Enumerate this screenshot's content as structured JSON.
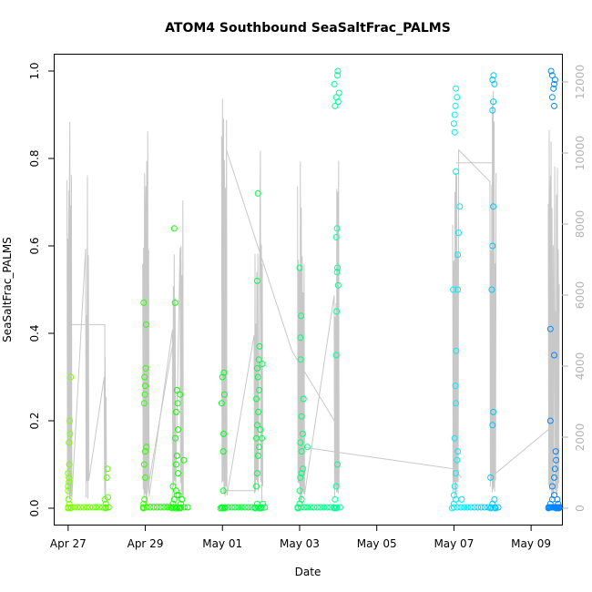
{
  "chart_data": {
    "type": "scatter",
    "title": "ATOM4 Southbound SeaSaltFrac_PALMS",
    "xlabel": "Date",
    "ylabel": "SeaSaltFrac_PALMS",
    "ylim": [
      0,
      1
    ],
    "y_ticks": [
      "0.0",
      "0.2",
      "0.4",
      "0.6",
      "0.8",
      "1.0"
    ],
    "x_range_days": [
      -0.35,
      12.8
    ],
    "x_ticks": [
      {
        "day": 0,
        "label": "Apr 27"
      },
      {
        "day": 2,
        "label": "Apr 29"
      },
      {
        "day": 4,
        "label": "May 01"
      },
      {
        "day": 6,
        "label": "May 03"
      },
      {
        "day": 8,
        "label": "May 05"
      },
      {
        "day": 10,
        "label": "May 07"
      },
      {
        "day": 12,
        "label": "May 09"
      }
    ],
    "right_axis": {
      "range": [
        0,
        12500
      ],
      "ticks": [
        "0",
        "2000",
        "4000",
        "6000",
        "8000",
        "10000",
        "12000"
      ],
      "color": "#b3b3b3"
    },
    "altitude_color": "#c8c8c8",
    "colors": {
      "start": "#7fff00",
      "end": "#0080ff"
    },
    "legend": "none",
    "series": [
      {
        "name": "SeaSaltFrac_PALMS",
        "note": "points colored by time along the flight track"
      }
    ],
    "flights": [
      {
        "name": "flight-1",
        "start": 0.0,
        "end": 1.05,
        "alt_peaks": [
          11500,
          11000,
          9500,
          5000
        ],
        "alt_peak_days": [
          0.02,
          0.06,
          0.5,
          0.97
        ],
        "points": [
          [
            0.0,
            0.0
          ],
          [
            0.01,
            0.02
          ],
          [
            0.0,
            0.04
          ],
          [
            0.02,
            0.07
          ],
          [
            0.0,
            0.08
          ],
          [
            0.03,
            0.1
          ],
          [
            0.02,
            0.15
          ],
          [
            0.05,
            0.17
          ],
          [
            0.04,
            0.2
          ],
          [
            0.07,
            0.3
          ],
          [
            0.0,
            0.05
          ],
          [
            0.03,
            0.01
          ],
          [
            0.05,
            0.0
          ],
          [
            0.02,
            0.06
          ],
          [
            0.95,
            0.02
          ],
          [
            1.0,
            0.07
          ],
          [
            1.02,
            0.09
          ],
          [
            0.98,
            0.01
          ],
          [
            1.03,
            0.025
          ],
          [
            0.97,
            0.0
          ]
        ]
      },
      {
        "name": "flight-2",
        "start": 1.95,
        "end": 3.1,
        "alt_peaks": [
          10500,
          11900,
          8500,
          9800
        ],
        "alt_peak_days": [
          1.98,
          2.05,
          2.75,
          2.95
        ],
        "points": [
          [
            1.95,
            0.0
          ],
          [
            1.96,
            0.01
          ],
          [
            1.98,
            0.02
          ],
          [
            1.97,
            0.1
          ],
          [
            2.0,
            0.13
          ],
          [
            1.99,
            0.26
          ],
          [
            2.0,
            0.28
          ],
          [
            1.98,
            0.3
          ],
          [
            2.01,
            0.32
          ],
          [
            1.97,
            0.24
          ],
          [
            2.02,
            0.42
          ],
          [
            1.96,
            0.47
          ],
          [
            2.03,
            0.14
          ],
          [
            2.0,
            0.07
          ],
          [
            2.7,
            0.0
          ],
          [
            2.72,
            0.01
          ],
          [
            2.75,
            0.02
          ],
          [
            2.8,
            0.04
          ],
          [
            2.72,
            0.05
          ],
          [
            2.85,
            0.08
          ],
          [
            2.8,
            0.1
          ],
          [
            2.82,
            0.12
          ],
          [
            2.78,
            0.16
          ],
          [
            2.85,
            0.18
          ],
          [
            2.8,
            0.22
          ],
          [
            2.84,
            0.24
          ],
          [
            2.82,
            0.27
          ],
          [
            2.9,
            0.26
          ],
          [
            2.75,
            0.64
          ],
          [
            2.77,
            0.47
          ],
          [
            2.82,
            0.03
          ],
          [
            2.88,
            0.0
          ],
          [
            2.92,
            0.01
          ],
          [
            2.95,
            0.02
          ],
          [
            3.0,
            0.11
          ],
          [
            2.9,
            0.0
          ],
          [
            2.8,
            0.0
          ],
          [
            2.86,
            0.03
          ]
        ]
      },
      {
        "name": "flight-3",
        "start": 3.98,
        "end": 5.1,
        "alt_peaks": [
          11700,
          12400,
          8800,
          11100
        ],
        "alt_peak_days": [
          4.02,
          4.08,
          4.88,
          5.02
        ],
        "points": [
          [
            3.95,
            0.0
          ],
          [
            4.0,
            0.0
          ],
          [
            4.05,
            0.0
          ],
          [
            4.02,
            0.13
          ],
          [
            4.03,
            0.17
          ],
          [
            3.98,
            0.24
          ],
          [
            4.05,
            0.26
          ],
          [
            4.0,
            0.3
          ],
          [
            4.04,
            0.31
          ],
          [
            4.02,
            0.04
          ],
          [
            4.85,
            0.0
          ],
          [
            4.9,
            0.01
          ],
          [
            4.88,
            0.05
          ],
          [
            4.9,
            0.08
          ],
          [
            4.92,
            0.12
          ],
          [
            4.95,
            0.14
          ],
          [
            4.88,
            0.16
          ],
          [
            4.9,
            0.19
          ],
          [
            4.93,
            0.22
          ],
          [
            4.88,
            0.25
          ],
          [
            4.95,
            0.27
          ],
          [
            4.92,
            0.3
          ],
          [
            4.9,
            0.32
          ],
          [
            4.94,
            0.34
          ],
          [
            4.96,
            0.37
          ],
          [
            4.9,
            0.52
          ],
          [
            4.92,
            0.72
          ],
          [
            5.0,
            0.0
          ],
          [
            5.05,
            0.01
          ],
          [
            4.98,
            0.18
          ],
          [
            5.02,
            0.16
          ],
          [
            5.03,
            0.33
          ],
          [
            4.96,
            0.0
          ]
        ]
      },
      {
        "name": "flight-4",
        "start": 5.95,
        "end": 7.05,
        "alt_peaks": [
          10700,
          10500,
          9800,
          10100
        ],
        "alt_peak_days": [
          6.0,
          6.08,
          6.95,
          7.0
        ],
        "points": [
          [
            5.95,
            0.0
          ],
          [
            6.0,
            0.01
          ],
          [
            6.05,
            0.02
          ],
          [
            6.0,
            0.04
          ],
          [
            6.02,
            0.07
          ],
          [
            6.05,
            0.08
          ],
          [
            6.08,
            0.09
          ],
          [
            6.05,
            0.13
          ],
          [
            6.02,
            0.15
          ],
          [
            6.08,
            0.17
          ],
          [
            6.1,
            0.25
          ],
          [
            6.05,
            0.21
          ],
          [
            6.03,
            0.34
          ],
          [
            6.02,
            0.39
          ],
          [
            6.04,
            0.44
          ],
          [
            6.0,
            0.55
          ],
          [
            6.2,
            0.14
          ],
          [
            6.9,
            0.0
          ],
          [
            6.92,
            0.02
          ],
          [
            6.95,
            0.05
          ],
          [
            6.98,
            0.1
          ],
          [
            6.95,
            0.35
          ],
          [
            6.96,
            0.45
          ],
          [
            6.97,
            0.54
          ],
          [
            6.98,
            0.55
          ],
          [
            7.0,
            0.51
          ],
          [
            6.95,
            0.62
          ],
          [
            6.97,
            0.64
          ],
          [
            6.92,
            0.92
          ],
          [
            6.9,
            0.97
          ],
          [
            6.95,
            0.94
          ],
          [
            7.0,
            0.93
          ],
          [
            7.02,
            0.95
          ],
          [
            6.98,
            0.99
          ],
          [
            6.99,
            1.0
          ],
          [
            6.94,
            0.0
          ]
        ]
      },
      {
        "name": "flight-5",
        "start": 10.0,
        "end": 11.15,
        "alt_peaks": [
          11900,
          11900,
          9600,
          11800
        ],
        "alt_peak_days": [
          10.02,
          10.08,
          10.98,
          11.05
        ],
        "points": [
          [
            9.95,
            0.0
          ],
          [
            10.0,
            0.01
          ],
          [
            10.05,
            0.02
          ],
          [
            10.0,
            0.03
          ],
          [
            10.02,
            0.05
          ],
          [
            10.05,
            0.08
          ],
          [
            10.08,
            0.11
          ],
          [
            10.1,
            0.13
          ],
          [
            10.02,
            0.16
          ],
          [
            10.05,
            0.24
          ],
          [
            10.04,
            0.28
          ],
          [
            10.06,
            0.36
          ],
          [
            9.98,
            0.5
          ],
          [
            10.1,
            0.5
          ],
          [
            10.1,
            0.58
          ],
          [
            10.12,
            0.63
          ],
          [
            10.15,
            0.69
          ],
          [
            10.05,
            0.77
          ],
          [
            10.02,
            0.9
          ],
          [
            10.04,
            0.92
          ],
          [
            10.08,
            0.94
          ],
          [
            10.05,
            0.96
          ],
          [
            10.0,
            0.88
          ],
          [
            10.02,
            0.86
          ],
          [
            10.2,
            0.02
          ],
          [
            10.95,
            0.0
          ],
          [
            11.0,
            0.01
          ],
          [
            11.05,
            0.02
          ],
          [
            11.0,
            0.19
          ],
          [
            11.02,
            0.22
          ],
          [
            10.98,
            0.5
          ],
          [
            11.0,
            0.6
          ],
          [
            11.02,
            0.69
          ],
          [
            11.0,
            0.91
          ],
          [
            11.02,
            0.93
          ],
          [
            11.05,
            0.97
          ],
          [
            11.0,
            0.98
          ],
          [
            11.03,
            0.99
          ],
          [
            10.95,
            0.07
          ],
          [
            11.08,
            0.0
          ]
        ]
      },
      {
        "name": "flight-6",
        "start": 12.45,
        "end": 12.75,
        "alt_peaks": [
          11800,
          9400,
          9800,
          10000
        ],
        "alt_peak_days": [
          12.5,
          12.55,
          12.65,
          12.7
        ],
        "points": [
          [
            12.45,
            0.0
          ],
          [
            12.5,
            0.01
          ],
          [
            12.55,
            0.02
          ],
          [
            12.6,
            0.03
          ],
          [
            12.55,
            0.05
          ],
          [
            12.6,
            0.07
          ],
          [
            12.62,
            0.09
          ],
          [
            12.65,
            0.11
          ],
          [
            12.64,
            0.13
          ],
          [
            12.5,
            0.2
          ],
          [
            12.6,
            0.35
          ],
          [
            12.5,
            0.41
          ],
          [
            12.55,
            0.94
          ],
          [
            12.58,
            0.96
          ],
          [
            12.6,
            0.97
          ],
          [
            12.62,
            0.98
          ],
          [
            12.55,
            0.99
          ],
          [
            12.52,
            1.0
          ],
          [
            12.6,
            0.92
          ],
          [
            12.65,
            0.0
          ],
          [
            12.7,
            0.01
          ],
          [
            12.68,
            0.02
          ],
          [
            12.72,
            0.0
          ]
        ]
      }
    ],
    "connectors": [
      [
        [
          0.0,
          0.42
        ],
        [
          0.95,
          0.42
        ],
        [
          0.95,
          0.02
        ]
      ],
      [
        [
          1.98,
          0.0
        ],
        [
          2.7,
          0.37
        ]
      ],
      [
        [
          2.75,
          0.01
        ],
        [
          2.05,
          0.01
        ],
        [
          1.98,
          0.0
        ]
      ],
      [
        [
          4.0,
          0.04
        ],
        [
          4.85,
          0.04
        ],
        [
          4.9,
          0.48
        ]
      ],
      [
        [
          4.1,
          0.82
        ],
        [
          5.8,
          0.36
        ],
        [
          6.9,
          0.2
        ]
      ],
      [
        [
          6.05,
          0.14
        ],
        [
          10.0,
          0.09
        ],
        [
          10.2,
          0.07
        ]
      ],
      [
        [
          10.95,
          0.07
        ],
        [
          12.45,
          0.18
        ]
      ],
      [
        [
          10.05,
          0.79
        ],
        [
          11.0,
          0.79
        ]
      ]
    ]
  }
}
